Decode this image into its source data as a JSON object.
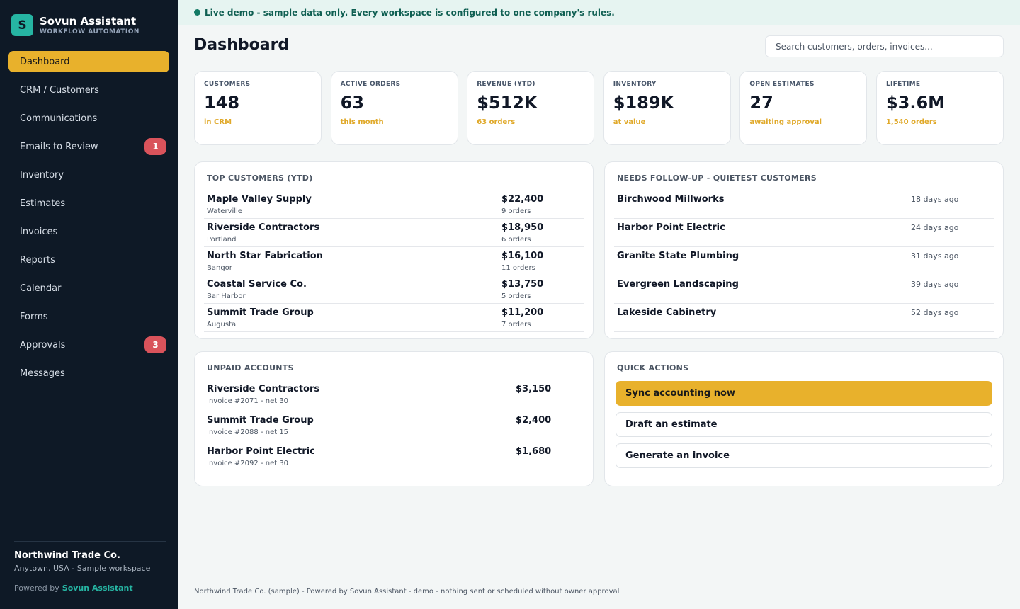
{
  "brand": {
    "logo_letter": "S",
    "name": "Sovun Assistant",
    "subtitle": "WORKFLOW AUTOMATION"
  },
  "nav": [
    {
      "label": "Dashboard",
      "active": true
    },
    {
      "label": "CRM / Customers"
    },
    {
      "label": "Communications"
    },
    {
      "label": "Emails to Review",
      "badge": "1"
    },
    {
      "label": "Inventory"
    },
    {
      "label": "Estimates"
    },
    {
      "label": "Invoices"
    },
    {
      "label": "Reports"
    },
    {
      "label": "Calendar"
    },
    {
      "label": "Forms"
    },
    {
      "label": "Approvals",
      "badge": "3"
    },
    {
      "label": "Messages"
    }
  ],
  "company": {
    "name": "Northwind Trade Co.",
    "location": "Anytown, USA - Sample workspace"
  },
  "powered": {
    "prefix": "Powered by",
    "brand": "Sovun Assistant"
  },
  "banner": {
    "text": "Live demo - sample data only. Every workspace is configured to one company's rules."
  },
  "header": {
    "title": "Dashboard",
    "search_placeholder": "Search customers, orders, invoices..."
  },
  "kpis": [
    {
      "label": "CUSTOMERS",
      "value": "148",
      "sub": "in CRM"
    },
    {
      "label": "ACTIVE ORDERS",
      "value": "63",
      "sub": "this month"
    },
    {
      "label": "REVENUE (YTD)",
      "value": "$512K",
      "sub": "63 orders"
    },
    {
      "label": "INVENTORY",
      "value": "$189K",
      "sub": "at value"
    },
    {
      "label": "OPEN ESTIMATES",
      "value": "27",
      "sub": "awaiting approval"
    },
    {
      "label": "LIFETIME",
      "value": "$3.6M",
      "sub": "1,540 orders"
    }
  ],
  "top_customers": {
    "title": "TOP CUSTOMERS (YTD)",
    "rows": [
      {
        "name": "Maple Valley Supply",
        "city": "Waterville",
        "amount": "$22,400",
        "orders": "9 orders"
      },
      {
        "name": "Riverside Contractors",
        "city": "Portland",
        "amount": "$18,950",
        "orders": "6 orders"
      },
      {
        "name": "North Star Fabrication",
        "city": "Bangor",
        "amount": "$16,100",
        "orders": "11 orders"
      },
      {
        "name": "Coastal Service Co.",
        "city": "Bar Harbor",
        "amount": "$13,750",
        "orders": "5 orders"
      },
      {
        "name": "Summit Trade Group",
        "city": "Augusta",
        "amount": "$11,200",
        "orders": "7 orders"
      }
    ]
  },
  "follow_up": {
    "title": "NEEDS FOLLOW-UP - QUIETEST CUSTOMERS",
    "rows": [
      {
        "name": "Birchwood Millworks",
        "ago": "18 days ago"
      },
      {
        "name": "Harbor Point Electric",
        "ago": "24 days ago"
      },
      {
        "name": "Granite State Plumbing",
        "ago": "31 days ago"
      },
      {
        "name": "Evergreen Landscaping",
        "ago": "39 days ago"
      },
      {
        "name": "Lakeside Cabinetry",
        "ago": "52 days ago"
      }
    ]
  },
  "unpaid": {
    "title": "UNPAID ACCOUNTS",
    "rows": [
      {
        "name": "Riverside Contractors",
        "detail": "Invoice #2071 - net 30",
        "amount": "$3,150"
      },
      {
        "name": "Summit Trade Group",
        "detail": "Invoice #2088 - net 15",
        "amount": "$2,400"
      },
      {
        "name": "Harbor Point Electric",
        "detail": "Invoice #2092 - net 30",
        "amount": "$1,680"
      }
    ]
  },
  "quick_actions": {
    "title": "QUICK ACTIONS",
    "buttons": [
      {
        "label": "Sync accounting now",
        "primary": true
      },
      {
        "label": "Draft an estimate"
      },
      {
        "label": "Generate an invoice"
      }
    ]
  },
  "footer": {
    "text": "Northwind Trade Co. (sample) - Powered by Sovun Assistant - demo - nothing sent or scheduled without owner approval"
  },
  "colors": {
    "sidebar": "#0e1926",
    "accent": "#e8b12c",
    "brand": "#26b5a3",
    "badge": "#d9535b",
    "banner_bg": "#e6f4f1",
    "banner_text": "#0f5f52"
  }
}
